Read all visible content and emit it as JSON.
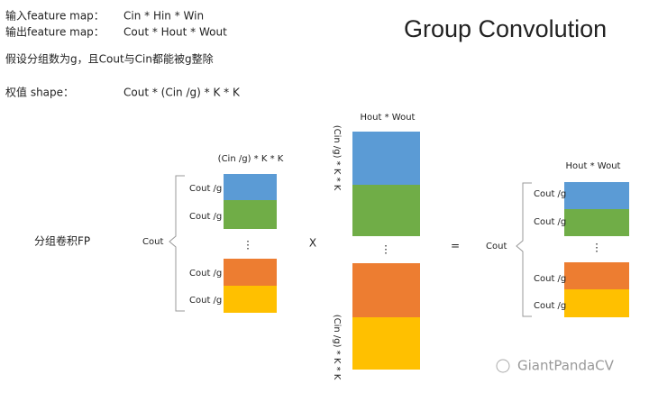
{
  "header": {
    "title": "Group Convolution"
  },
  "notes": [
    {
      "label": "输入feature map：",
      "formula": "Cin * Hin * Win"
    },
    {
      "label": "输出feature map：",
      "formula": "Cout * Hout * Wout"
    },
    {
      "label": "假设分组数为g，且Cout与Cin都能被g整除"
    },
    {
      "label": "权值 shape：",
      "formula": "Cout * (Cin /g) * K * K"
    }
  ],
  "diagram": {
    "left_label": "分组卷积FP",
    "weights": {
      "top_label": "(Cin /g) * K * K",
      "side_label": "Cout",
      "row_labels": [
        "Cout /g",
        "Cout /g",
        "Cout /g",
        "Cout /g"
      ],
      "ellipsis": "⋮"
    },
    "multiply": "X",
    "input": {
      "top_label": "Hout * Wout",
      "side_labels": [
        "(Cin /g) * K * K",
        "(Cin /g) * K * K"
      ],
      "ellipsis": "⋮"
    },
    "equals": "=",
    "output": {
      "top_label": "Hout * Wout",
      "side_label": "Cout",
      "row_labels": [
        "Cout /g",
        "Cout /g",
        "Cout /g",
        "Cout /g"
      ],
      "ellipsis": "⋮"
    }
  },
  "watermark": "GiantPandaCV"
}
